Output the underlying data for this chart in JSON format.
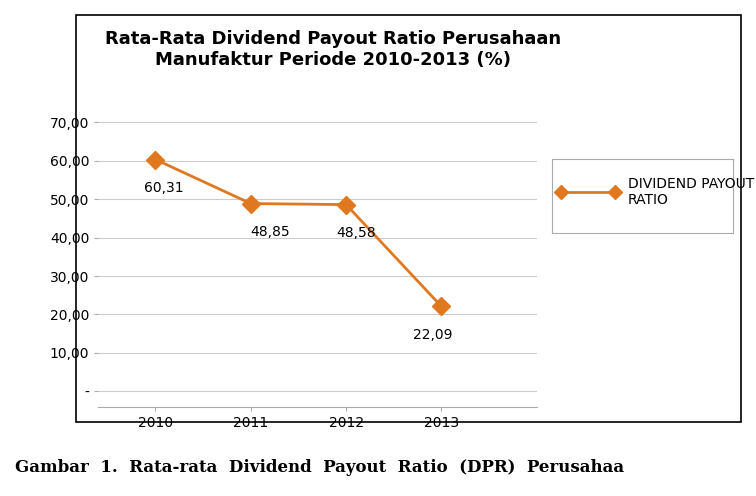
{
  "title_line1": "Rata-Rata Dividend Payout Ratio Perusahaan",
  "title_line2": "Manufaktur Periode 2010-2013 (%)",
  "years": [
    2010,
    2011,
    2012,
    2013
  ],
  "values": [
    60.31,
    48.85,
    48.58,
    22.09
  ],
  "labels": [
    "60,31",
    "48,85",
    "48,58",
    "22,09"
  ],
  "yticks": [
    0,
    10,
    20,
    30,
    40,
    50,
    60,
    70
  ],
  "ytick_labels": [
    "-",
    "10,00",
    "20,00",
    "30,00",
    "40,00",
    "50,00",
    "60,00",
    "70,00"
  ],
  "ylim": [
    -4,
    76
  ],
  "xlim": [
    2009.4,
    2014.0
  ],
  "line_color": "#E07820",
  "marker_color": "#E07820",
  "legend_label": "DIVIDEND PAYOUT\nRATIO",
  "caption": "Gambar  1.  Rata-rata  Dividend  Payout  Ratio  (DPR)  Perusahaa",
  "title_fontsize": 13,
  "tick_fontsize": 10,
  "label_fontsize": 10,
  "legend_fontsize": 10,
  "caption_fontsize": 12,
  "background_color": "#ffffff"
}
